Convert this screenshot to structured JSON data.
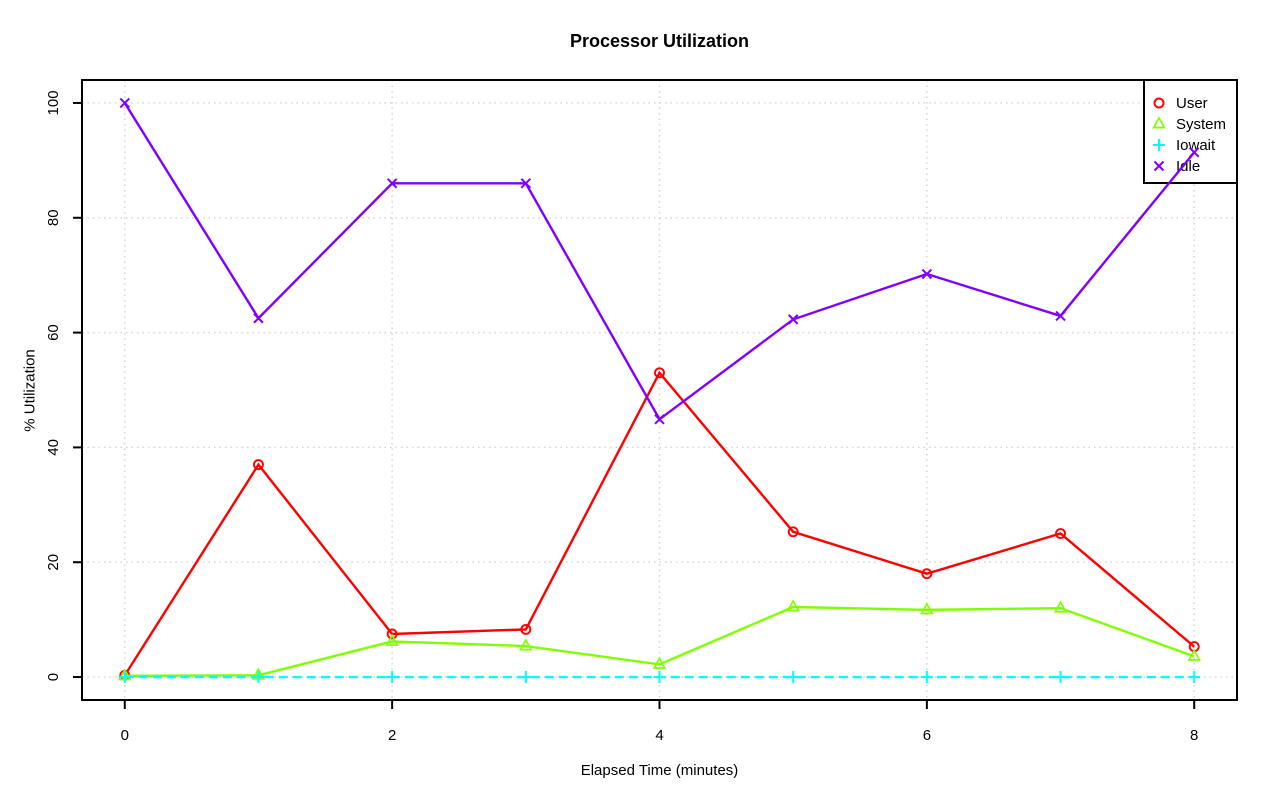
{
  "chart_data": {
    "type": "line",
    "title": "Processor Utilization",
    "xlabel": "Elapsed Time (minutes)",
    "ylabel": "% Utilization",
    "x": [
      0,
      1,
      2,
      3,
      4,
      5,
      6,
      7,
      8
    ],
    "xlim": [
      0,
      8
    ],
    "ylim": [
      0,
      100
    ],
    "xticks": [
      0,
      2,
      4,
      6,
      8
    ],
    "yticks": [
      0,
      20,
      40,
      60,
      80,
      100
    ],
    "grid": true,
    "grid_style": "dotted",
    "legend_position": "topright",
    "series": [
      {
        "name": "User",
        "marker": "circle-icon",
        "color": "#FF0000",
        "line": "solid",
        "values": [
          0.3,
          37.0,
          7.5,
          8.3,
          53.0,
          25.3,
          18.0,
          25.0,
          5.3
        ]
      },
      {
        "name": "System",
        "marker": "triangle-icon",
        "color": "#80FF00",
        "line": "solid",
        "values": [
          0.2,
          0.3,
          6.2,
          5.4,
          2.2,
          12.2,
          11.7,
          12.0,
          3.6
        ]
      },
      {
        "name": "Iowait",
        "marker": "plus-icon",
        "color": "#00FFFF",
        "line": "dashed",
        "values": [
          0,
          0,
          0,
          0,
          0,
          0,
          0,
          0,
          0
        ]
      },
      {
        "name": "Idle",
        "marker": "x-icon",
        "color": "#8000FF",
        "line": "solid",
        "values": [
          100.0,
          62.5,
          86.0,
          86.0,
          44.9,
          62.3,
          70.2,
          62.9,
          91.4
        ]
      }
    ],
    "colors": {
      "background": "#FFFFFF",
      "axis": "#000000",
      "grid": "#D2D2D2",
      "text": "#000000",
      "legend_border": "#000000",
      "legend_background": "#FFFFFF"
    }
  }
}
